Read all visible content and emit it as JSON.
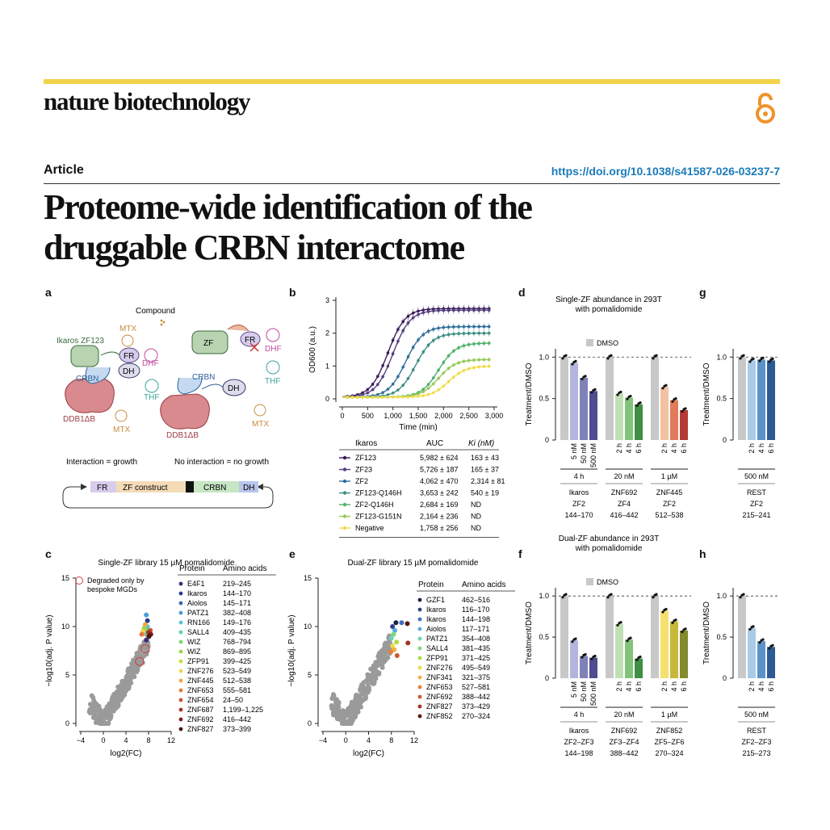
{
  "header": {
    "journal": "nature biotechnology",
    "section": "Article",
    "doi": "https://doi.org/10.1038/s41587-026-03237-7",
    "title_line1": "Proteome-wide identification of the",
    "title_line2": "druggable CRBN interactome",
    "accent_color": "#f2d34a",
    "doi_color": "#1a7bb9"
  },
  "panels": {
    "a": {
      "letter": "a",
      "compound": "Compound",
      "ikaros": "Ikaros ZF123",
      "mtx": "MTX",
      "fr": "FR",
      "dhf": "DHF",
      "dh": "DH",
      "crbn": "CRBN",
      "thf": "THF",
      "ddb1": "DDB1ΔB",
      "zf": "ZF",
      "caption_left": "Interaction = growth",
      "caption_right": "No interaction = no growth",
      "construct": [
        "FR",
        "ZF construct",
        "CRBN",
        "DH"
      ]
    },
    "b": {
      "letter": "b"
    },
    "c": {
      "letter": "c"
    },
    "d": {
      "letter": "d"
    },
    "e": {
      "letter": "e"
    },
    "f": {
      "letter": "f"
    },
    "g": {
      "letter": "g"
    },
    "h": {
      "letter": "h"
    }
  },
  "chart_data": [
    {
      "id": "b",
      "type": "line",
      "xlabel": "Time (min)",
      "ylabel": "OD600 (a.u.)",
      "xlim": [
        0,
        3000
      ],
      "ylim": [
        0,
        3
      ],
      "xticks": [
        "0",
        "500",
        "1,000",
        "1,500",
        "2,000",
        "2,500",
        "3,000"
      ],
      "yticks": [
        "0",
        "1",
        "2",
        "3"
      ],
      "table_headers": [
        "Ikaros",
        "AUC",
        "Ki (nM)"
      ],
      "series": [
        {
          "name": "ZF123",
          "auc": "5,982 ± 624",
          "ki": "163 ± 43",
          "color": "#3b1c5a",
          "plateau": 2.75,
          "midpoint": 900
        },
        {
          "name": "ZF23",
          "auc": "5,726 ± 187",
          "ki": "165 ± 37",
          "color": "#54407f",
          "plateau": 2.7,
          "midpoint": 1000
        },
        {
          "name": "ZF2",
          "auc": "4,062 ± 470",
          "ki": "2,314 ± 81",
          "color": "#2f6f9a",
          "plateau": 2.2,
          "midpoint": 1250
        },
        {
          "name": "ZF123-Q146H",
          "auc": "3,653 ± 242",
          "ki": "540 ± 19",
          "color": "#3c8d82",
          "plateau": 2.0,
          "midpoint": 1450
        },
        {
          "name": "ZF2-Q146H",
          "auc": "2,684 ± 169",
          "ki": "ND",
          "color": "#4fb06a",
          "plateau": 1.7,
          "midpoint": 1900
        },
        {
          "name": "ZF123-G151N",
          "auc": "2,164 ± 236",
          "ki": "ND",
          "color": "#95c85a",
          "plateau": 1.2,
          "midpoint": 1900
        },
        {
          "name": "Negative",
          "auc": "1,758 ± 256",
          "ki": "ND",
          "color": "#f0dc4a",
          "plateau": 1.0,
          "midpoint": 2100
        }
      ]
    },
    {
      "id": "c",
      "type": "scatter",
      "title": "Single-ZF library 15 µM pomalidomide",
      "xlabel": "log2(FC)",
      "ylabel": "−log10(adj. P value)",
      "xlim": [
        -4,
        12
      ],
      "ylim": [
        0,
        15
      ],
      "xticks": [
        "−4",
        "0",
        "4",
        "8",
        "12"
      ],
      "yticks": [
        "0",
        "5",
        "10",
        "15"
      ],
      "legend_note": "Degraded only by bespoke MGDs",
      "table_headers": [
        "Protein",
        "Amino acids"
      ],
      "hits": [
        {
          "protein": "E4F1",
          "aa": "219–245",
          "color": "#3b2c7a",
          "x": 7.6,
          "y": 8.6
        },
        {
          "protein": "Ikaros",
          "aa": "144–170",
          "color": "#2b3c8f",
          "x": 7.8,
          "y": 10.6
        },
        {
          "protein": "Aiolos",
          "aa": "145–171",
          "color": "#3b66b4",
          "x": 7.6,
          "y": 9.8
        },
        {
          "protein": "PATZ1",
          "aa": "382–408",
          "color": "#4c9cd8",
          "x": 7.6,
          "y": 11.2
        },
        {
          "protein": "RN166",
          "aa": "149–176",
          "color": "#55c3d6",
          "x": 7.8,
          "y": 10.0
        },
        {
          "protein": "SALL4",
          "aa": "409–435",
          "color": "#60d2a8",
          "x": 7.3,
          "y": 9.4
        },
        {
          "protein": "WIZ",
          "aa": "768–794",
          "color": "#7bd86a",
          "x": 7.9,
          "y": 9.6
        },
        {
          "protein": "WIZ",
          "aa": "869–895",
          "color": "#9cd64a",
          "x": 7.2,
          "y": 9.8
        },
        {
          "protein": "ZFP91",
          "aa": "399–425",
          "color": "#c8dc3c",
          "x": 8.0,
          "y": 9.3
        },
        {
          "protein": "ZNF276",
          "aa": "523–549",
          "color": "#f2d34a",
          "x": 7.0,
          "y": 9.5
        },
        {
          "protein": "ZNF445",
          "aa": "512–538",
          "color": "#f2a640",
          "x": 7.4,
          "y": 10.2
        },
        {
          "protein": "ZNF653",
          "aa": "555–581",
          "color": "#e47a36",
          "x": 6.8,
          "y": 9.2
        },
        {
          "protein": "ZNF654",
          "aa": "24–50",
          "color": "#c9512c",
          "x": 8.3,
          "y": 9.6
        },
        {
          "protein": "ZNF687",
          "aa": "1,199–1,225",
          "color": "#a53222",
          "x": 8.0,
          "y": 9.4
        },
        {
          "protein": "ZNF692",
          "aa": "416–442",
          "color": "#7b1e1a",
          "x": 8.4,
          "y": 9.2
        },
        {
          "protein": "ZNF827",
          "aa": "373–399",
          "color": "#4a1410",
          "x": 8.1,
          "y": 9.0
        }
      ]
    },
    {
      "id": "e",
      "type": "scatter",
      "title": "Dual-ZF library 15 µM pomalidomide",
      "xlabel": "log2(FC)",
      "ylabel": "−log10(adj. P value)",
      "xlim": [
        -4,
        12
      ],
      "ylim": [
        0,
        15
      ],
      "xticks": [
        "−4",
        "0",
        "4",
        "8",
        "12"
      ],
      "yticks": [
        "0",
        "5",
        "10",
        "15"
      ],
      "table_headers": [
        "Protein",
        "Amino acids"
      ],
      "hits": [
        {
          "protein": "GZF1",
          "aa": "462–516",
          "color": "#1e2240",
          "x": 8.8,
          "y": 10.4
        },
        {
          "protein": "Ikaros",
          "aa": "116–170",
          "color": "#2f3f8a",
          "x": 8.2,
          "y": 10.0
        },
        {
          "protein": "Ikaros",
          "aa": "144–198",
          "color": "#3f6fc0",
          "x": 9.8,
          "y": 10.4
        },
        {
          "protein": "Aiolos",
          "aa": "117–171",
          "color": "#5aa8de",
          "x": 8.6,
          "y": 9.6
        },
        {
          "protein": "PATZ1",
          "aa": "354–408",
          "color": "#6ed0b8",
          "x": 8.0,
          "y": 8.8
        },
        {
          "protein": "SALL4",
          "aa": "381–435",
          "color": "#7cd878",
          "x": 8.4,
          "y": 9.2
        },
        {
          "protein": "ZFP91",
          "aa": "371–425",
          "color": "#b0dc48",
          "x": 8.9,
          "y": 8.4
        },
        {
          "protein": "ZNF276",
          "aa": "495–549",
          "color": "#eed84a",
          "x": 8.2,
          "y": 8.0
        },
        {
          "protein": "ZNF341",
          "aa": "321–375",
          "color": "#f2b044",
          "x": 8.5,
          "y": 7.6
        },
        {
          "protein": "ZNF653",
          "aa": "527–581",
          "color": "#e4823a",
          "x": 7.9,
          "y": 7.4
        },
        {
          "protein": "ZNF692",
          "aa": "388–442",
          "color": "#cc5a30",
          "x": 9.0,
          "y": 7.0
        },
        {
          "protein": "ZNF827",
          "aa": "373–429",
          "color": "#a33424",
          "x": 10.9,
          "y": 8.3
        },
        {
          "protein": "ZNF852",
          "aa": "270–324",
          "color": "#5a1812",
          "x": 10.8,
          "y": 10.3
        }
      ]
    },
    {
      "id": "d",
      "type": "bar",
      "title_line1": "Single-ZF abundance in 293T",
      "title_line2": "with pomalidomide",
      "legend": "DMSO",
      "ylabel": "Treatment/DMSO",
      "ylim": [
        0,
        1.1
      ],
      "yticks": [
        "0",
        "0.5",
        "1.0"
      ],
      "groups": [
        {
          "cond": "4 h",
          "protein": "Ikaros",
          "zf": "ZF2",
          "aa": "144–170",
          "bars": [
            {
              "label": "",
              "value": 1.0,
              "color": "#c8c8c8"
            },
            {
              "label": "5 nM",
              "value": 0.93,
              "color": "#b3b6dc"
            },
            {
              "label": "50 nM",
              "value": 0.75,
              "color": "#7f82b8"
            },
            {
              "label": "500 nM",
              "value": 0.59,
              "color": "#4f4d8f"
            }
          ]
        },
        {
          "cond": "20 nM",
          "protein": "ZNF692",
          "zf": "ZF4",
          "aa": "416–442",
          "bars": [
            {
              "label": "",
              "value": 1.0,
              "color": "#c8c8c8"
            },
            {
              "label": "2 h",
              "value": 0.56,
              "color": "#bfe0b4"
            },
            {
              "label": "4 h",
              "value": 0.51,
              "color": "#82c37a"
            },
            {
              "label": "6 h",
              "value": 0.43,
              "color": "#3f8f45"
            }
          ]
        },
        {
          "cond": "1 µM",
          "protein": "ZNF445",
          "zf": "ZF2",
          "aa": "512–538",
          "bars": [
            {
              "label": "",
              "value": 1.0,
              "color": "#c8c8c8"
            },
            {
              "label": "2 h",
              "value": 0.64,
              "color": "#f2c2a2"
            },
            {
              "label": "4 h",
              "value": 0.48,
              "color": "#e07a5a"
            },
            {
              "label": "6 h",
              "value": 0.36,
              "color": "#b43a34"
            }
          ]
        }
      ]
    },
    {
      "id": "g",
      "type": "bar",
      "ylabel": "Treatment/DMSO",
      "ylim": [
        0,
        1.1
      ],
      "yticks": [
        "0",
        "0.5",
        "1.0"
      ],
      "groups": [
        {
          "cond": "500 nM",
          "protein": "REST",
          "zf": "ZF2",
          "aa": "215–241",
          "bars": [
            {
              "label": "",
              "value": 1.0,
              "color": "#c8c8c8"
            },
            {
              "label": "2 h",
              "value": 0.96,
              "color": "#a9cbe6"
            },
            {
              "label": "4 h",
              "value": 0.97,
              "color": "#5b92c7"
            },
            {
              "label": "6 h",
              "value": 0.96,
              "color": "#2c5a93"
            }
          ]
        }
      ]
    },
    {
      "id": "f",
      "type": "bar",
      "title_line1": "Dual-ZF abundance in 293T",
      "title_line2": "with pomalidomide",
      "legend": "DMSO",
      "ylabel": "Treatment/DMSO",
      "ylim": [
        0,
        1.1
      ],
      "yticks": [
        "0",
        "0.5",
        "1.0"
      ],
      "groups": [
        {
          "cond": "4 h",
          "protein": "Ikaros",
          "zf": "ZF2–ZF3",
          "aa": "144–198",
          "bars": [
            {
              "label": "",
              "value": 1.0,
              "color": "#c8c8c8"
            },
            {
              "label": "5 nM",
              "value": 0.46,
              "color": "#b3b6dc"
            },
            {
              "label": "50 nM",
              "value": 0.27,
              "color": "#7f82b8"
            },
            {
              "label": "500 nM",
              "value": 0.25,
              "color": "#4f4d8f"
            }
          ]
        },
        {
          "cond": "20 nM",
          "protein": "ZNF692",
          "zf": "ZF3–ZF4",
          "aa": "388–442",
          "bars": [
            {
              "label": "",
              "value": 1.0,
              "color": "#c8c8c8"
            },
            {
              "label": "2 h",
              "value": 0.66,
              "color": "#bfe0b4"
            },
            {
              "label": "4 h",
              "value": 0.47,
              "color": "#82c37a"
            },
            {
              "label": "6 h",
              "value": 0.24,
              "color": "#3f8f45"
            }
          ]
        },
        {
          "cond": "1 µM",
          "protein": "ZNF852",
          "zf": "ZF5–ZF6",
          "aa": "270–324",
          "bars": [
            {
              "label": "",
              "value": 1.0,
              "color": "#c8c8c8"
            },
            {
              "label": "2 h",
              "value": 0.82,
              "color": "#f5e070"
            },
            {
              "label": "4 h",
              "value": 0.69,
              "color": "#c8b83a"
            },
            {
              "label": "6 h",
              "value": 0.58,
              "color": "#858a2c"
            }
          ]
        }
      ]
    },
    {
      "id": "h",
      "type": "bar",
      "ylabel": "Treatment/DMSO",
      "ylim": [
        0,
        1.1
      ],
      "yticks": [
        "0",
        "0.5",
        "1.0"
      ],
      "groups": [
        {
          "cond": "500 nM",
          "protein": "REST",
          "zf": "ZF2–ZF3",
          "aa": "215–273",
          "bars": [
            {
              "label": "",
              "value": 1.0,
              "color": "#c8c8c8"
            },
            {
              "label": "2 h",
              "value": 0.61,
              "color": "#a9cbe6"
            },
            {
              "label": "4 h",
              "value": 0.45,
              "color": "#5b92c7"
            },
            {
              "label": "6 h",
              "value": 0.38,
              "color": "#2c5a93"
            }
          ]
        }
      ]
    }
  ]
}
